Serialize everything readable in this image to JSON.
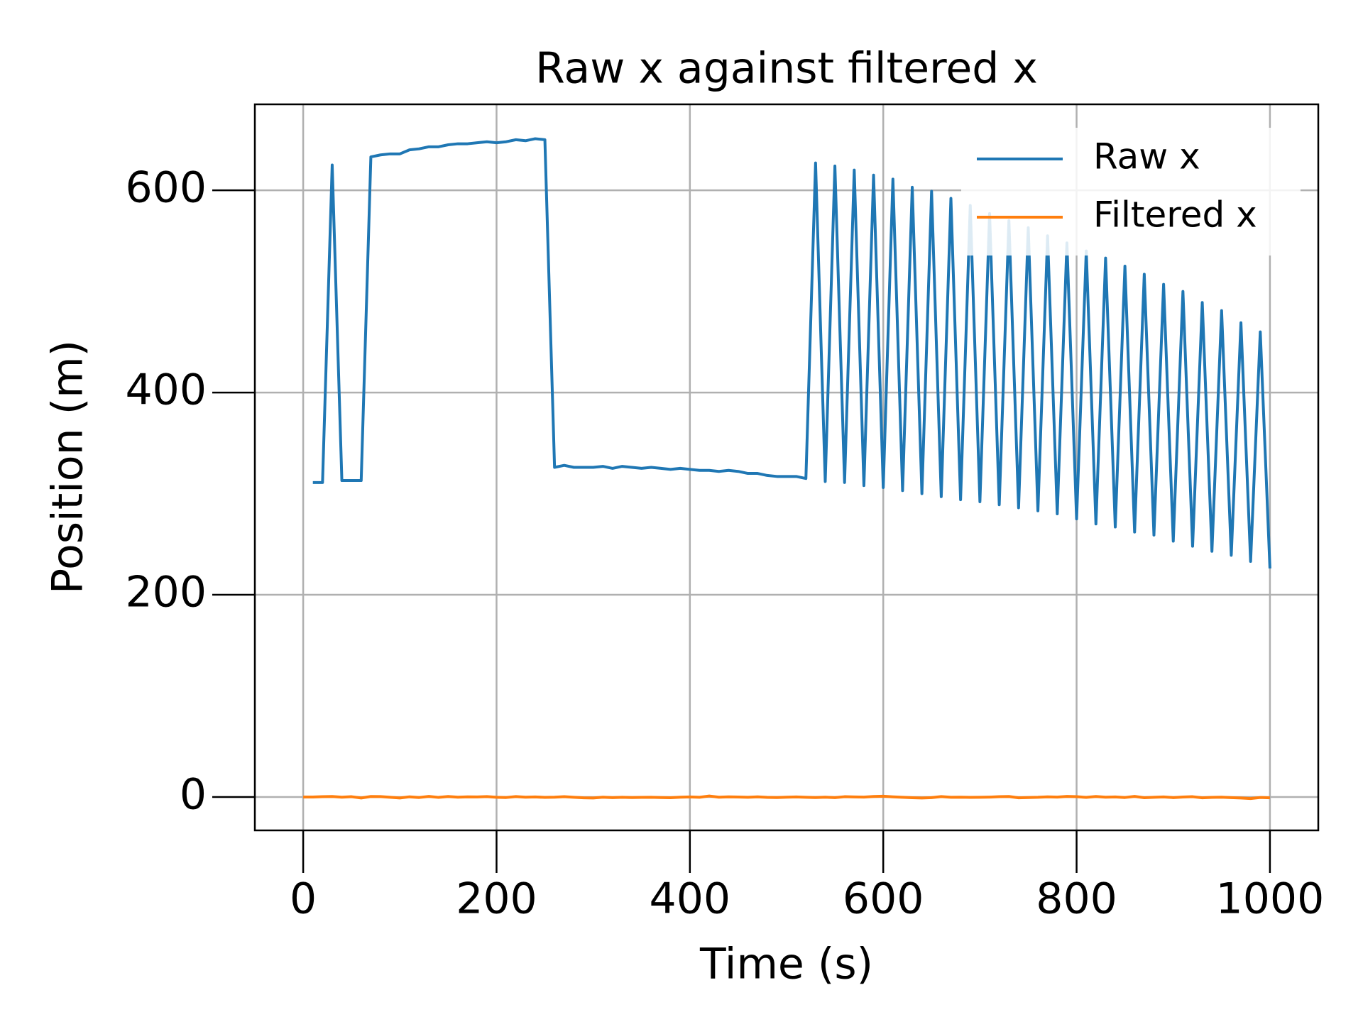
{
  "chart_data": {
    "type": "line",
    "title": "Raw x against filtered x",
    "x_label": "Time (s)",
    "y_label": "Position (m)",
    "x": [
      0,
      10,
      20,
      30,
      40,
      50,
      60,
      70,
      80,
      90,
      100,
      110,
      120,
      130,
      140,
      150,
      160,
      170,
      180,
      190,
      200,
      210,
      220,
      230,
      240,
      250,
      260,
      270,
      280,
      290,
      300,
      310,
      320,
      330,
      340,
      350,
      360,
      370,
      380,
      390,
      400,
      410,
      420,
      430,
      440,
      450,
      460,
      470,
      480,
      490,
      500,
      510,
      520,
      530,
      540,
      550,
      560,
      570,
      580,
      590,
      600,
      610,
      620,
      630,
      640,
      650,
      660,
      670,
      680,
      690,
      700,
      710,
      720,
      730,
      740,
      750,
      760,
      770,
      780,
      790,
      800,
      810,
      820,
      830,
      840,
      850,
      860,
      870,
      880,
      890,
      900,
      910,
      920,
      930,
      940,
      950,
      960,
      970,
      980,
      990,
      1000
    ],
    "series": [
      {
        "name": "Raw x",
        "color": "#1f77b4",
        "values": [
          null,
          311,
          311,
          625,
          313,
          313,
          313,
          633,
          635,
          636,
          636,
          640,
          641,
          643,
          643,
          645,
          646,
          646,
          647,
          648,
          647,
          648,
          650,
          649,
          651,
          650,
          326,
          328,
          326,
          326,
          326,
          327,
          325,
          327,
          326,
          325,
          326,
          325,
          324,
          325,
          324,
          323,
          323,
          322,
          323,
          322,
          320,
          320,
          318,
          317,
          317,
          317,
          315,
          627,
          312,
          624,
          311,
          620,
          308,
          615,
          306,
          611,
          303,
          603,
          300,
          599,
          297,
          592,
          294,
          585,
          292,
          577,
          289,
          570,
          286,
          563,
          283,
          555,
          280,
          548,
          275,
          540,
          270,
          533,
          267,
          525,
          262,
          517,
          259,
          507,
          253,
          500,
          248,
          489,
          243,
          481,
          239,
          469,
          233,
          460,
          226
        ]
      },
      {
        "name": "Filtered x",
        "color": "#ff7f0e",
        "values": [
          0,
          0,
          0.3,
          0.5,
          -0.2,
          0.3,
          -1,
          0.5,
          0.4,
          -0.3,
          -1,
          0.2,
          -0.5,
          0.6,
          -0.4,
          0.5,
          -0.2,
          0.2,
          0.1,
          0.4,
          -0.3,
          -0.5,
          0.4,
          -0.2,
          0.1,
          -0.4,
          -0.2,
          0.3,
          -0.3,
          -0.8,
          -1,
          -0.2,
          -0.6,
          -0.3,
          -0.5,
          -0.4,
          -0.3,
          -0.5,
          -0.7,
          -0.2,
          0.1,
          -0.3,
          1,
          -0.2,
          0.2,
          0,
          -0.3,
          0.2,
          -0.4,
          -0.5,
          -0.2,
          0.1,
          -0.3,
          -0.5,
          -0.2,
          -0.6,
          0.3,
          0.1,
          -0.1,
          0.5,
          0.8,
          0.2,
          -0.3,
          -0.7,
          -1,
          -0.6,
          0.4,
          -0.3,
          -0.2,
          -0.4,
          -0.3,
          -0.1,
          0.3,
          0.5,
          -0.8,
          -0.5,
          -0.3,
          0.2,
          -0.1,
          0.6,
          0.3,
          -0.4,
          0.5,
          -0.2,
          0.1,
          -0.5,
          0.6,
          -0.7,
          -0.3,
          0.1,
          -0.6,
          0,
          0.3,
          -0.8,
          -0.4,
          -0.2,
          -0.6,
          -1,
          -1.5,
          -0.5,
          -0.8
        ]
      }
    ],
    "xlim": [
      -50,
      1050
    ],
    "ylim": [
      -33,
      685
    ],
    "xticks": [
      0,
      200,
      400,
      600,
      800,
      1000
    ],
    "yticks": [
      0,
      200,
      400,
      600
    ],
    "grid": true,
    "legend": "upper right"
  }
}
